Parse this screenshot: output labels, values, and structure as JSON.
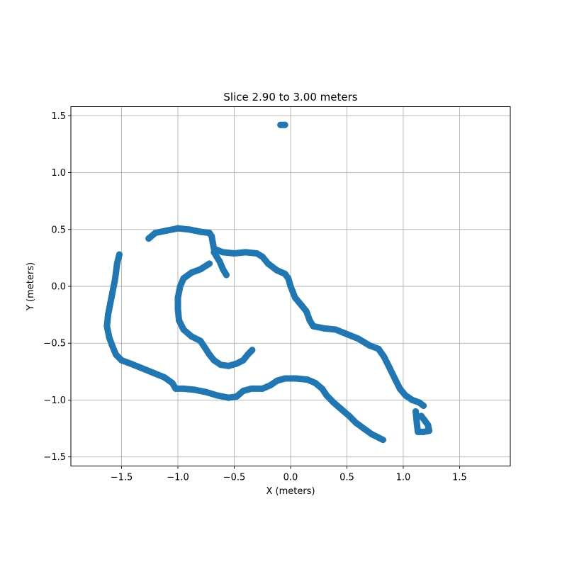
{
  "chart_data": {
    "type": "scatter",
    "title": "Slice 2.90 to 3.00 meters",
    "xlabel": "X (meters)",
    "ylabel": "Y (meters)",
    "xlim": [
      -1.95,
      1.95
    ],
    "ylim": [
      -1.58,
      1.58
    ],
    "xticks": [
      -1.5,
      -1.0,
      -0.5,
      0.0,
      0.5,
      1.0,
      1.5
    ],
    "xtick_labels": [
      "−1.5",
      "−1.0",
      "−0.5",
      "0.0",
      "0.5",
      "1.0",
      "1.5"
    ],
    "yticks": [
      -1.5,
      -1.0,
      -0.5,
      0.0,
      0.5,
      1.0,
      1.5
    ],
    "ytick_labels": [
      "−1.5",
      "−1.0",
      "−0.5",
      "0.0",
      "0.5",
      "1.0",
      "1.5"
    ],
    "grid": true,
    "color": "#1f77b4",
    "series": [
      {
        "points": [
          [
            -0.09,
            1.42
          ],
          [
            -0.05,
            1.42
          ]
        ]
      },
      {
        "points": [
          [
            -1.26,
            0.42
          ],
          [
            -1.2,
            0.47
          ],
          [
            -1.1,
            0.49
          ],
          [
            -1.0,
            0.51
          ],
          [
            -0.9,
            0.5
          ],
          [
            -0.8,
            0.48
          ],
          [
            -0.72,
            0.47
          ],
          [
            -0.7,
            0.44
          ],
          [
            -0.69,
            0.38
          ],
          [
            -0.68,
            0.33
          ],
          [
            -0.6,
            0.3
          ],
          [
            -0.5,
            0.29
          ],
          [
            -0.4,
            0.3
          ],
          [
            -0.3,
            0.29
          ],
          [
            -0.25,
            0.26
          ],
          [
            -0.2,
            0.2
          ],
          [
            -0.12,
            0.14
          ],
          [
            -0.05,
            0.11
          ],
          [
            -0.02,
            0.07
          ],
          [
            0.0,
            0.0
          ],
          [
            0.04,
            -0.1
          ],
          [
            0.1,
            -0.17
          ],
          [
            0.14,
            -0.22
          ],
          [
            0.17,
            -0.3
          ],
          [
            0.2,
            -0.35
          ],
          [
            0.3,
            -0.37
          ],
          [
            0.4,
            -0.38
          ],
          [
            0.5,
            -0.42
          ],
          [
            0.6,
            -0.46
          ],
          [
            0.7,
            -0.52
          ],
          [
            0.78,
            -0.55
          ],
          [
            0.83,
            -0.62
          ],
          [
            0.88,
            -0.72
          ],
          [
            0.93,
            -0.82
          ],
          [
            0.97,
            -0.9
          ],
          [
            1.02,
            -0.96
          ],
          [
            1.08,
            -1.0
          ],
          [
            1.14,
            -1.02
          ],
          [
            1.18,
            -1.05
          ]
        ]
      },
      {
        "points": [
          [
            1.11,
            -1.1
          ],
          [
            1.12,
            -1.2
          ],
          [
            1.13,
            -1.28
          ],
          [
            1.18,
            -1.28
          ],
          [
            1.23,
            -1.27
          ],
          [
            1.22,
            -1.22
          ],
          [
            1.19,
            -1.18
          ],
          [
            1.16,
            -1.14
          ]
        ]
      },
      {
        "points": [
          [
            -0.68,
            0.3
          ],
          [
            -0.63,
            0.22
          ],
          [
            -0.6,
            0.15
          ],
          [
            -0.57,
            0.1
          ]
        ]
      },
      {
        "points": [
          [
            -0.72,
            0.2
          ],
          [
            -0.8,
            0.15
          ],
          [
            -0.88,
            0.12
          ],
          [
            -0.95,
            0.07
          ],
          [
            -0.98,
            0.0
          ],
          [
            -1.0,
            -0.1
          ],
          [
            -1.0,
            -0.2
          ],
          [
            -0.99,
            -0.3
          ],
          [
            -0.95,
            -0.38
          ],
          [
            -0.88,
            -0.44
          ],
          [
            -0.8,
            -0.48
          ],
          [
            -0.76,
            -0.54
          ],
          [
            -0.72,
            -0.6
          ],
          [
            -0.68,
            -0.65
          ],
          [
            -0.62,
            -0.69
          ],
          [
            -0.55,
            -0.7
          ],
          [
            -0.48,
            -0.68
          ],
          [
            -0.42,
            -0.65
          ],
          [
            -0.38,
            -0.6
          ],
          [
            -0.34,
            -0.56
          ]
        ]
      },
      {
        "points": [
          [
            -1.52,
            0.28
          ],
          [
            -1.54,
            0.2
          ],
          [
            -1.55,
            0.12
          ],
          [
            -1.56,
            0.05
          ],
          [
            -1.58,
            -0.05
          ],
          [
            -1.6,
            -0.15
          ],
          [
            -1.62,
            -0.25
          ],
          [
            -1.63,
            -0.35
          ],
          [
            -1.61,
            -0.45
          ],
          [
            -1.58,
            -0.53
          ],
          [
            -1.55,
            -0.6
          ],
          [
            -1.5,
            -0.65
          ],
          [
            -1.42,
            -0.68
          ],
          [
            -1.32,
            -0.72
          ],
          [
            -1.22,
            -0.76
          ],
          [
            -1.12,
            -0.8
          ],
          [
            -1.05,
            -0.85
          ],
          [
            -1.02,
            -0.9
          ],
          [
            -0.95,
            -0.9
          ],
          [
            -0.85,
            -0.91
          ],
          [
            -0.75,
            -0.93
          ],
          [
            -0.65,
            -0.96
          ],
          [
            -0.55,
            -0.98
          ],
          [
            -0.48,
            -0.97
          ],
          [
            -0.42,
            -0.92
          ],
          [
            -0.35,
            -0.9
          ],
          [
            -0.25,
            -0.9
          ],
          [
            -0.18,
            -0.87
          ],
          [
            -0.12,
            -0.83
          ],
          [
            -0.05,
            -0.81
          ],
          [
            0.05,
            -0.81
          ],
          [
            0.15,
            -0.82
          ],
          [
            0.22,
            -0.85
          ],
          [
            0.28,
            -0.9
          ],
          [
            0.32,
            -0.96
          ],
          [
            0.38,
            -1.02
          ],
          [
            0.45,
            -1.08
          ],
          [
            0.52,
            -1.14
          ],
          [
            0.58,
            -1.2
          ],
          [
            0.65,
            -1.25
          ],
          [
            0.72,
            -1.3
          ],
          [
            0.78,
            -1.33
          ],
          [
            0.82,
            -1.35
          ]
        ]
      }
    ]
  }
}
